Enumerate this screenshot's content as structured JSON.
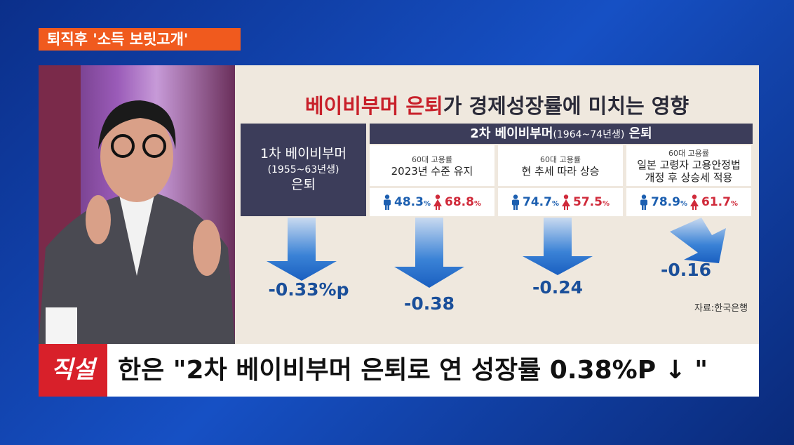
{
  "tag": "퇴직후 '소득 보릿고개'",
  "infographic": {
    "title_highlight": "베이비부머 은퇴",
    "title_rest": "가 경제성장률에 미치는 영향",
    "first_gen": {
      "lines": [
        "1차 베이비부머",
        "(1955~63년생)",
        "은퇴"
      ],
      "effect": "-0.33%p"
    },
    "second_gen": {
      "header_main": "2차 베이비부머",
      "header_years": "(1964~74년생)",
      "header_end": "은퇴",
      "scenarios": [
        {
          "small": "60대 고용률",
          "label": [
            "2023년 수준 유지"
          ],
          "male": {
            "value": "48.3",
            "unit": "%"
          },
          "female": {
            "value": "68.8",
            "unit": "%"
          },
          "effect": "-0.38"
        },
        {
          "small": "60대 고용률",
          "label": [
            "현 추세 따라 상승"
          ],
          "male": {
            "value": "74.7",
            "unit": "%"
          },
          "female": {
            "value": "57.5",
            "unit": "%"
          },
          "effect": "-0.24"
        },
        {
          "small": "60대 고용률",
          "label": [
            "일본 고령자 고용안정법",
            "개정 후 상승세 적용"
          ],
          "male": {
            "value": "78.9",
            "unit": "%"
          },
          "female": {
            "value": "61.7",
            "unit": "%"
          },
          "effect": "-0.16"
        }
      ]
    },
    "source": "자료:한국은행"
  },
  "headline": {
    "logo": "직설",
    "text": "한은 \"2차 베이비부머 은퇴로 연 성장률 0.38%P ↓ \""
  }
}
